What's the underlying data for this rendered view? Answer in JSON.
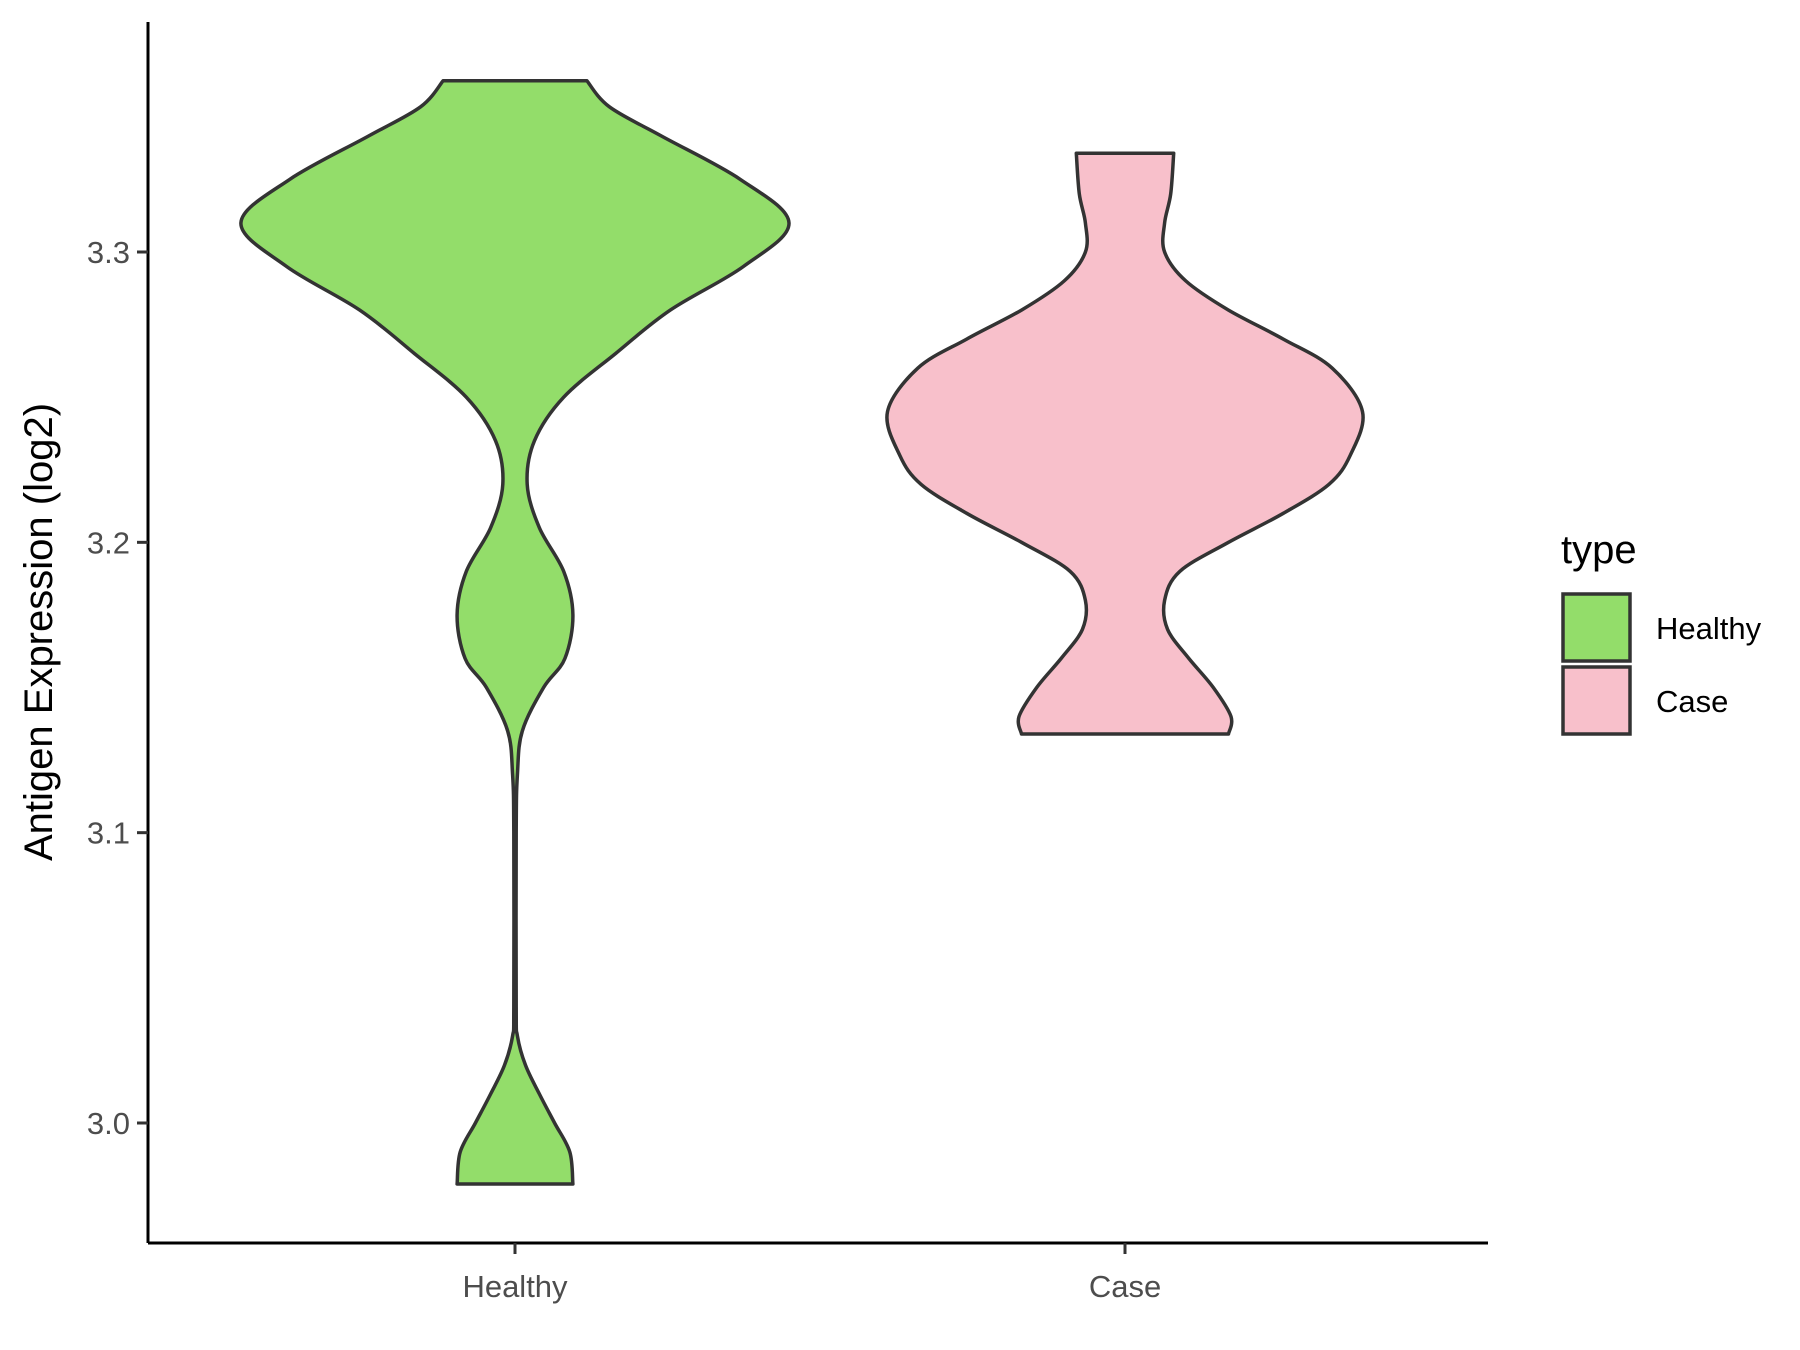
{
  "chart_data": {
    "type": "violin",
    "ylabel": "Antigen Expression (log2)",
    "xlabel": "",
    "categories": [
      "Healthy",
      "Case"
    ],
    "ylim": [
      2.96,
      3.38
    ],
    "yticks": [
      "3.0",
      "3.1",
      "3.2",
      "3.3"
    ],
    "ytick_values": [
      3.0,
      3.1,
      3.2,
      3.3
    ],
    "legend": {
      "title": "type",
      "position": "right",
      "entries": [
        "Healthy",
        "Case"
      ]
    },
    "grid": false,
    "series": [
      {
        "name": "Healthy",
        "color": "#93dd6a",
        "min": 2.979,
        "max": 3.359,
        "profile": [
          [
            2.979,
            0.095
          ],
          [
            2.99,
            0.09
          ],
          [
            3.0,
            0.065
          ],
          [
            3.01,
            0.04
          ],
          [
            3.02,
            0.017
          ],
          [
            3.03,
            0.004
          ],
          [
            3.04,
            0.002
          ],
          [
            3.1,
            0.002
          ],
          [
            3.12,
            0.004
          ],
          [
            3.135,
            0.012
          ],
          [
            3.15,
            0.047
          ],
          [
            3.16,
            0.082
          ],
          [
            3.175,
            0.095
          ],
          [
            3.19,
            0.08
          ],
          [
            3.205,
            0.04
          ],
          [
            3.22,
            0.02
          ],
          [
            3.235,
            0.032
          ],
          [
            3.25,
            0.08
          ],
          [
            3.265,
            0.165
          ],
          [
            3.28,
            0.255
          ],
          [
            3.295,
            0.375
          ],
          [
            3.31,
            0.45
          ],
          [
            3.325,
            0.37
          ],
          [
            3.34,
            0.24
          ],
          [
            3.35,
            0.155
          ],
          [
            3.359,
            0.118
          ]
        ]
      },
      {
        "name": "Case",
        "color": "#f8c0cb",
        "min": 3.134,
        "max": 3.334,
        "profile": [
          [
            3.134,
            0.17
          ],
          [
            3.14,
            0.174
          ],
          [
            3.15,
            0.145
          ],
          [
            3.16,
            0.105
          ],
          [
            3.17,
            0.07
          ],
          [
            3.18,
            0.065
          ],
          [
            3.19,
            0.09
          ],
          [
            3.2,
            0.17
          ],
          [
            3.21,
            0.26
          ],
          [
            3.22,
            0.335
          ],
          [
            3.23,
            0.37
          ],
          [
            3.245,
            0.39
          ],
          [
            3.26,
            0.34
          ],
          [
            3.27,
            0.26
          ],
          [
            3.28,
            0.17
          ],
          [
            3.29,
            0.1
          ],
          [
            3.3,
            0.065
          ],
          [
            3.31,
            0.065
          ],
          [
            3.32,
            0.075
          ],
          [
            3.334,
            0.08
          ]
        ]
      }
    ]
  }
}
